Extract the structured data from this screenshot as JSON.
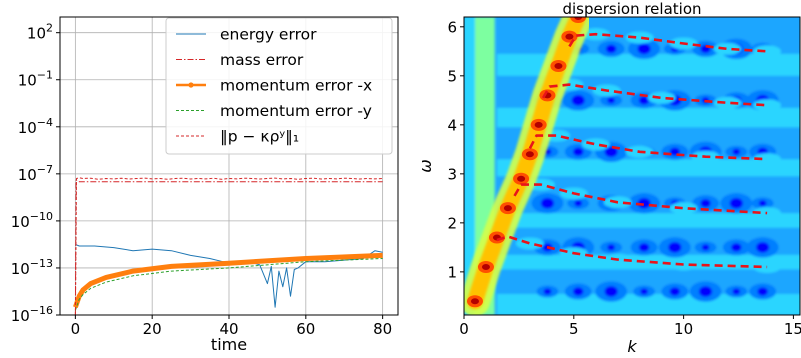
{
  "chart_data": [
    {
      "type": "line",
      "title": "",
      "xlabel": "time",
      "ylabel": "",
      "xlim": [
        -4,
        84
      ],
      "ylim_log10": [
        -16,
        3
      ],
      "yscale": "log",
      "grid": true,
      "legend_position": "top-right",
      "x_ticks": [
        0,
        20,
        40,
        60,
        80
      ],
      "x_tick_labels": [
        "0",
        "20",
        "40",
        "60",
        "80"
      ],
      "y_ticks_log10": [
        2,
        -1,
        -4,
        -7,
        -10,
        -13,
        -16
      ],
      "y_tick_labels": [
        {
          "base": "10",
          "exp": "2"
        },
        {
          "base": "10",
          "exp": "−1"
        },
        {
          "base": "10",
          "exp": "−4"
        },
        {
          "base": "10",
          "exp": "−7"
        },
        {
          "base": "10",
          "exp": "−10"
        },
        {
          "base": "10",
          "exp": "−13"
        },
        {
          "base": "10",
          "exp": "−16"
        }
      ],
      "series": [
        {
          "name": "energy error",
          "color": "#1f77b4",
          "style": "solid",
          "x": [
            0,
            1,
            5,
            10,
            15,
            20,
            25,
            30,
            35,
            40,
            45,
            48,
            50,
            51,
            52,
            53,
            54,
            55,
            56,
            57,
            58,
            60,
            65,
            70,
            75,
            78,
            80
          ],
          "y_log10": [
            -11.5,
            -11.6,
            -11.6,
            -11.7,
            -11.9,
            -11.8,
            -11.9,
            -12.2,
            -12.4,
            -12.7,
            -12.6,
            -12.8,
            -14.0,
            -12.9,
            -15.5,
            -13.2,
            -14.2,
            -13.0,
            -14.8,
            -13.1,
            -13.0,
            -12.6,
            -12.6,
            -12.5,
            -12.4,
            -11.9,
            -12.0
          ]
        },
        {
          "name": "mass error",
          "color": "#d62728",
          "style": "dashdot",
          "x": [
            0,
            0.2,
            1,
            80
          ],
          "y_log10": [
            -16,
            -7.4,
            -7.5,
            -7.5
          ]
        },
        {
          "name": "momentum error -x",
          "color": "#ff7f0e",
          "style": "thick-solid",
          "x": [
            0,
            1,
            2,
            4,
            8,
            15,
            25,
            40,
            60,
            80
          ],
          "y_log10": [
            -15.5,
            -14.8,
            -14.4,
            -14.0,
            -13.6,
            -13.2,
            -12.9,
            -12.7,
            -12.4,
            -12.2
          ]
        },
        {
          "name": "momentum error -y",
          "color": "#2ca02c",
          "style": "dashed",
          "x": [
            0,
            1,
            2,
            4,
            8,
            15,
            25,
            40,
            60,
            80
          ],
          "y_log10": [
            -15.7,
            -15.0,
            -14.7,
            -14.3,
            -13.9,
            -13.5,
            -13.2,
            -13.0,
            -12.6,
            -12.4
          ]
        },
        {
          "name": "‖p − κρʸ‖₁",
          "color": "#d62728",
          "style": "dashed",
          "x": [
            0,
            0.3,
            1,
            2,
            4,
            6,
            8,
            10,
            12,
            14,
            16,
            18,
            20,
            22,
            24,
            26,
            28,
            30,
            32,
            34,
            36,
            38,
            40,
            42,
            44,
            46,
            48,
            50,
            52,
            54,
            56,
            58,
            60,
            62,
            64,
            66,
            68,
            70,
            72,
            74,
            76,
            78,
            80
          ],
          "y_log10": [
            -16,
            -7.3,
            -7.25,
            -7.3,
            -7.28,
            -7.35,
            -7.3,
            -7.32,
            -7.28,
            -7.33,
            -7.3,
            -7.27,
            -7.32,
            -7.3,
            -7.35,
            -7.3,
            -7.28,
            -7.33,
            -7.3,
            -7.32,
            -7.28,
            -7.35,
            -7.3,
            -7.32,
            -7.28,
            -7.3,
            -7.33,
            -7.3,
            -7.27,
            -7.32,
            -7.3,
            -7.35,
            -7.3,
            -7.28,
            -7.33,
            -7.3,
            -7.32,
            -7.28,
            -7.3,
            -7.33,
            -7.3,
            -7.32,
            -7.3
          ]
        }
      ]
    },
    {
      "type": "heatmap",
      "title": "dispersion relation",
      "xlabel": "k",
      "ylabel": "ω",
      "xlim": [
        0,
        15.3
      ],
      "ylim": [
        0.12,
        6.2
      ],
      "grid": false,
      "x_ticks": [
        0,
        5,
        10,
        15
      ],
      "x_tick_labels": [
        "0",
        "5",
        "10",
        "15"
      ],
      "y_ticks": [
        1,
        2,
        3,
        4,
        5,
        6
      ],
      "y_tick_labels": [
        "1",
        "2",
        "3",
        "4",
        "5",
        "6"
      ],
      "colormap": [
        "#00007f",
        "#0000ff",
        "#007fff",
        "#1ea6ff",
        "#29d5ff",
        "#7dffa0",
        "#d6ff48",
        "#ffc200",
        "#ff4f00",
        "#b30000",
        "#7f0000"
      ],
      "dispersion_curves": {
        "color": "#e8141a",
        "style": "dashed",
        "curves": [
          {
            "k": [
              1.5,
              2.0,
              3.0,
              5.0,
              7.0,
              10.0,
              13.8
            ],
            "omega": [
              1.65,
              1.72,
              1.58,
              1.38,
              1.25,
              1.15,
              1.1
            ]
          },
          {
            "k": [
              2.3,
              2.6,
              3.5,
              5.0,
              7.0,
              10.0,
              13.8
            ],
            "omega": [
              2.55,
              2.78,
              2.78,
              2.6,
              2.42,
              2.3,
              2.2
            ]
          },
          {
            "k": [
              3.0,
              3.3,
              4.2,
              6.0,
              8.0,
              11.0,
              13.8
            ],
            "omega": [
              3.52,
              3.78,
              3.78,
              3.6,
              3.45,
              3.35,
              3.3
            ]
          },
          {
            "k": [
              3.6,
              3.9,
              4.8,
              6.5,
              9.0,
              12.0,
              13.8
            ],
            "omega": [
              4.55,
              4.78,
              4.82,
              4.7,
              4.55,
              4.45,
              4.4
            ]
          },
          {
            "k": [
              4.8,
              5.1,
              6.0,
              8.0,
              10.0,
              12.0,
              13.8
            ],
            "omega": [
              5.6,
              5.82,
              5.85,
              5.78,
              5.66,
              5.55,
              5.5
            ]
          }
        ]
      }
    }
  ]
}
